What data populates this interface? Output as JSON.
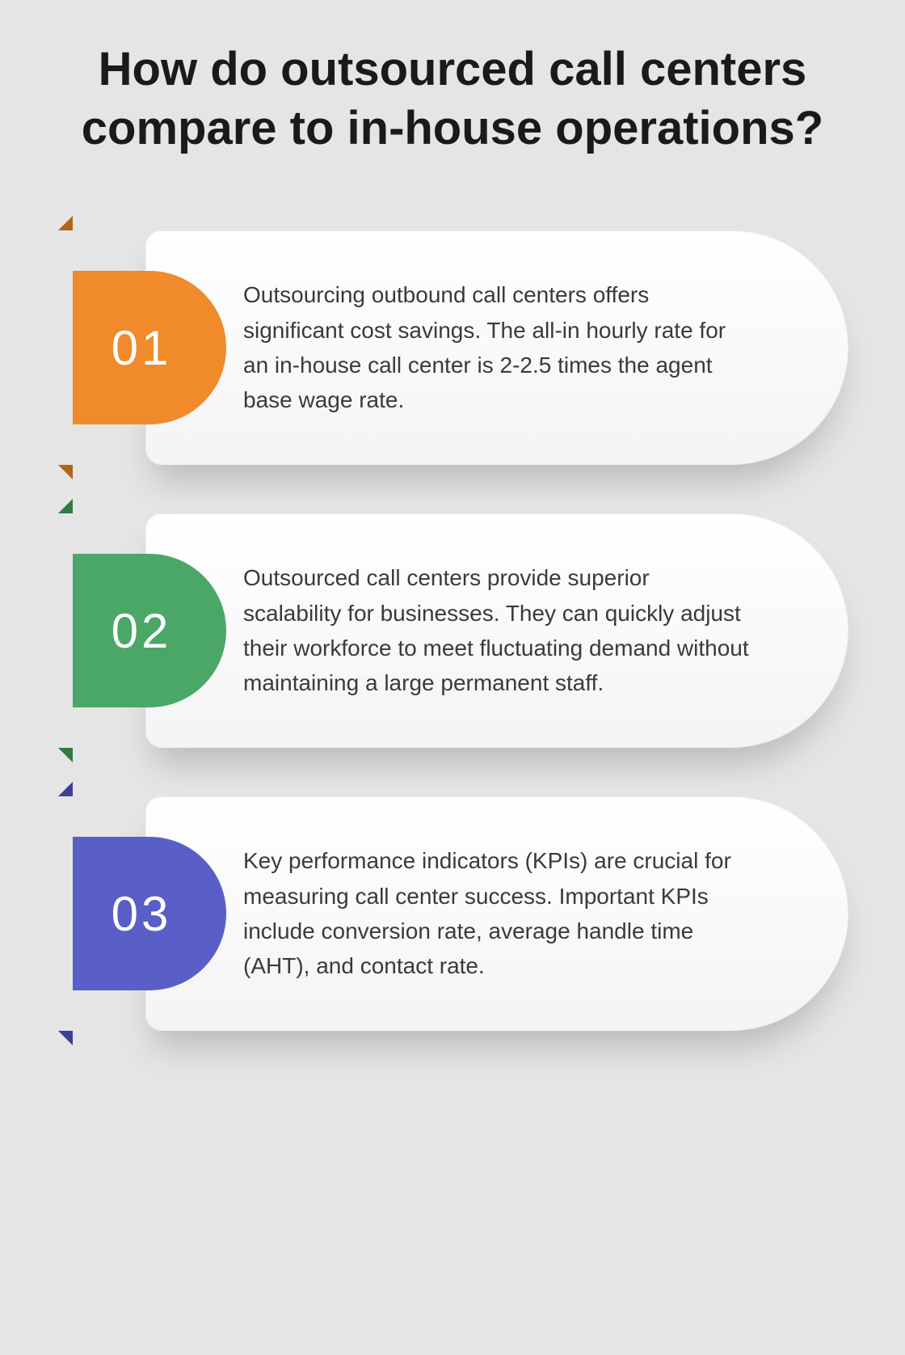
{
  "title": "How do outsourced call centers compare to in-house operations?",
  "background_color": "#e5e5e5",
  "card_bg_top": "#ffffff",
  "card_bg_bottom": "#f4f4f4",
  "title_color": "#1a1a1a",
  "text_color": "#3a3a3a",
  "title_fontsize": 58,
  "body_fontsize": 28,
  "items": [
    {
      "number": "01",
      "badge_color": "#f08a2b",
      "fold_color": "#b26518",
      "text": "Outsourcing outbound call centers offers significant cost savings. The all-in hourly rate for an in-house call center is 2-2.5 times the agent base wage rate."
    },
    {
      "number": "02",
      "badge_color": "#4aa767",
      "fold_color": "#2f7a46",
      "text": "Outsourced call centers provide superior scalability for businesses. They can quickly adjust their workforce to meet fluctuating demand without maintaining a large permanent staff."
    },
    {
      "number": "03",
      "badge_color": "#5a5fc7",
      "fold_color": "#3c4096",
      "text": "Key performance indicators (KPIs) are crucial for measuring call center success. Important KPIs include conversion rate, average handle time (AHT), and contact rate."
    }
  ]
}
